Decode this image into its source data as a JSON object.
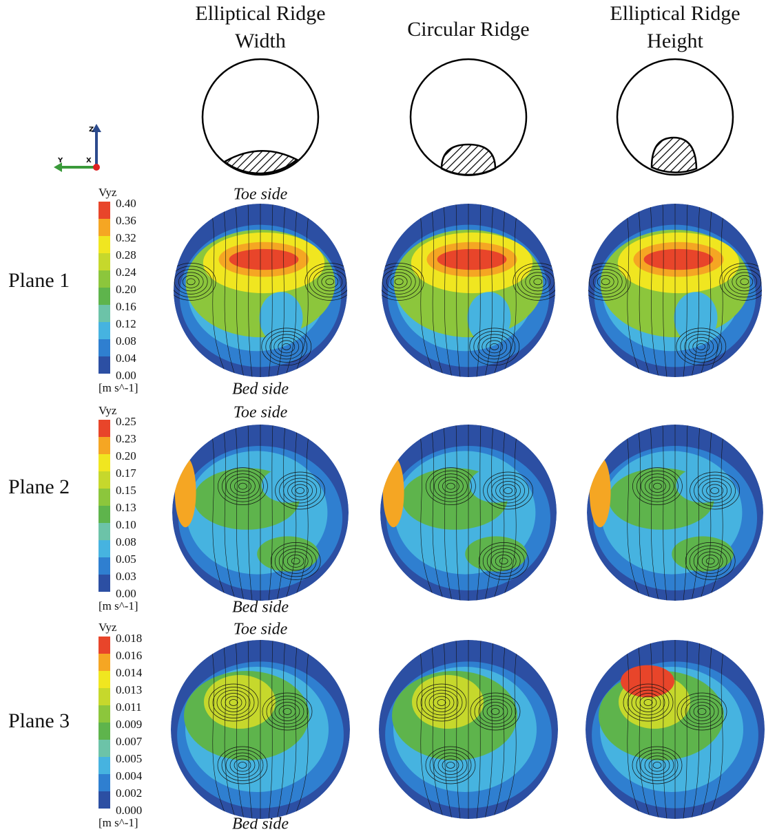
{
  "headers": [
    [
      "Elliptical Ridge",
      "Width"
    ],
    [
      "Circular Ridge"
    ],
    [
      "Elliptical Ridge",
      "Height"
    ]
  ],
  "axis_triad": {
    "z": "Z",
    "y": "Y",
    "x": "X"
  },
  "planes": [
    {
      "label": "Plane 1",
      "toe": "Toe side",
      "bed": "Bed side",
      "colorbar": {
        "title": "Vyz",
        "ticks": [
          "0.40",
          "0.36",
          "0.32",
          "0.28",
          "0.24",
          "0.20",
          "0.16",
          "0.12",
          "0.08",
          "0.04",
          "0.00"
        ],
        "unit": "[m s^-1]"
      }
    },
    {
      "label": "Plane 2",
      "toe": "Toe side",
      "bed": "Bed side",
      "colorbar": {
        "title": "Vyz",
        "ticks": [
          "0.25",
          "0.23",
          "0.20",
          "0.17",
          "0.15",
          "0.13",
          "0.10",
          "0.08",
          "0.05",
          "0.03",
          "0.00"
        ],
        "unit": "[m s^-1]"
      }
    },
    {
      "label": "Plane 3",
      "toe": "Toe side",
      "bed": "Bed side",
      "colorbar": {
        "title": "Vyz",
        "ticks": [
          "0.018",
          "0.016",
          "0.014",
          "0.013",
          "0.011",
          "0.009",
          "0.007",
          "0.005",
          "0.004",
          "0.002",
          "0.000"
        ],
        "unit": "[m s^-1]"
      }
    }
  ]
}
